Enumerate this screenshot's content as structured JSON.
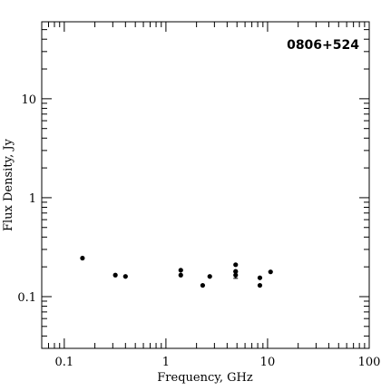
{
  "chart_data": {
    "type": "scatter",
    "title": "",
    "xlabel": "Frequency, GHz",
    "ylabel": "Flux Density, Jy",
    "xscale": "log",
    "yscale": "log",
    "xlim": [
      0.06,
      100
    ],
    "ylim": [
      0.03,
      60
    ],
    "grid": false,
    "annotation": "0806+524",
    "x_ticks": [
      {
        "value": 0.1,
        "label": "0.1"
      },
      {
        "value": 1,
        "label": "1"
      },
      {
        "value": 10,
        "label": "10"
      },
      {
        "value": 100,
        "label": "100"
      }
    ],
    "y_ticks": [
      {
        "value": 0.1,
        "label": "0.1"
      },
      {
        "value": 1,
        "label": "1"
      },
      {
        "value": 10,
        "label": "10"
      }
    ],
    "series": [
      {
        "points": [
          {
            "x": 0.151,
            "y": 0.245
          },
          {
            "x": 0.318,
            "y": 0.165
          },
          {
            "x": 0.4,
            "y": 0.16
          },
          {
            "x": 1.4,
            "y": 0.185
          },
          {
            "x": 1.4,
            "y": 0.165
          },
          {
            "x": 2.3,
            "y": 0.13
          },
          {
            "x": 2.7,
            "y": 0.16
          },
          {
            "x": 4.85,
            "y": 0.21
          },
          {
            "x": 4.85,
            "y": 0.18
          },
          {
            "x": 4.85,
            "y": 0.165,
            "yerr": 0.012
          },
          {
            "x": 8.4,
            "y": 0.155
          },
          {
            "x": 8.4,
            "y": 0.13
          },
          {
            "x": 10.7,
            "y": 0.178
          }
        ]
      }
    ]
  }
}
